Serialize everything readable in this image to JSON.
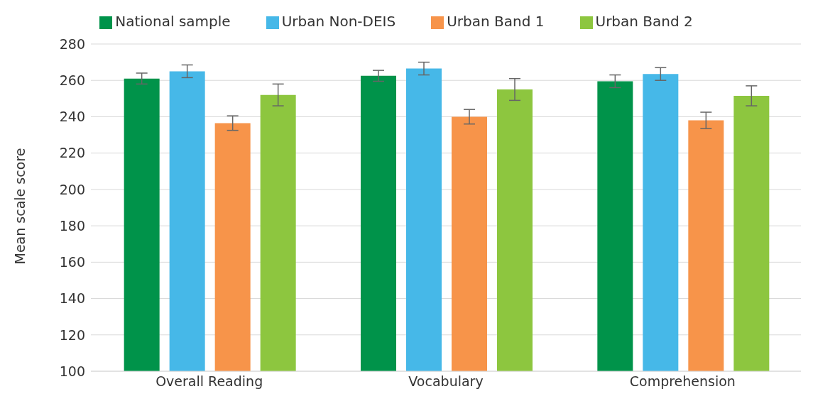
{
  "chart_data": {
    "type": "bar",
    "ylabel": "Mean scale score",
    "categories": [
      "Overall Reading",
      "Vocabulary",
      "Comprehension"
    ],
    "series": [
      {
        "name": "National sample",
        "color": "#00934a",
        "values": [
          261,
          262.5,
          259.5
        ],
        "errors": [
          3,
          3,
          3.5
        ]
      },
      {
        "name": "Urban Non-DEIS",
        "color": "#46b8e8",
        "values": [
          265,
          266.5,
          263.5
        ],
        "errors": [
          3.5,
          3.5,
          3.5
        ]
      },
      {
        "name": "Urban Band 1",
        "color": "#f7944a",
        "values": [
          236.5,
          240,
          238
        ],
        "errors": [
          4,
          4,
          4.5
        ]
      },
      {
        "name": "Urban Band 2",
        "color": "#8dc63f",
        "values": [
          252,
          255,
          251.5
        ],
        "errors": [
          6,
          6,
          5.5
        ]
      }
    ],
    "ylim": [
      100,
      280
    ],
    "yticks": [
      100,
      120,
      140,
      160,
      180,
      200,
      220,
      240,
      260,
      280
    ],
    "grid": "y",
    "legend": "top"
  }
}
